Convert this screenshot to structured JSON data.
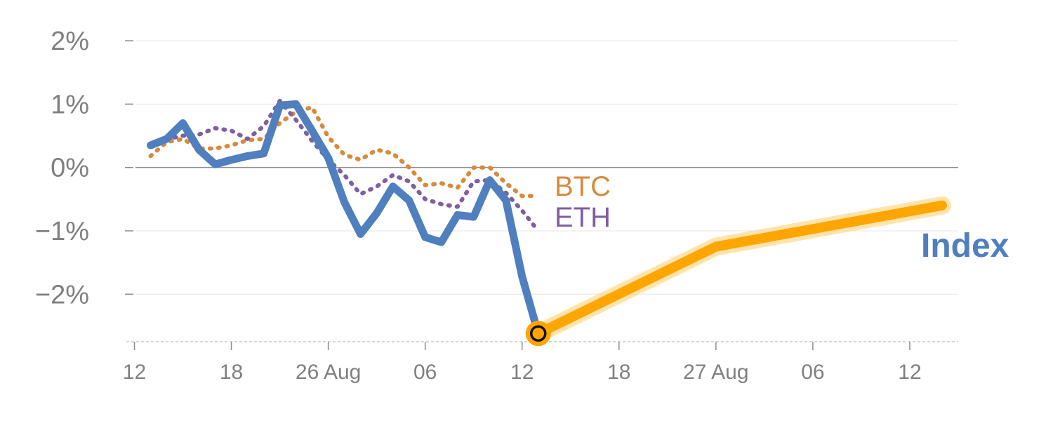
{
  "chart_data": {
    "type": "line",
    "title": "",
    "xlabel": "",
    "ylabel": "",
    "x_ticks": [
      {
        "x": 0,
        "label": "12"
      },
      {
        "x": 6,
        "label": "18"
      },
      {
        "x": 12,
        "label": "26 Aug"
      },
      {
        "x": 18,
        "label": "06"
      },
      {
        "x": 24,
        "label": "12"
      },
      {
        "x": 30,
        "label": "18"
      },
      {
        "x": 36,
        "label": "27 Aug"
      },
      {
        "x": 42,
        "label": "06"
      },
      {
        "x": 48,
        "label": "12"
      }
    ],
    "xlim": [
      -0.5,
      51
    ],
    "y_ticks": [
      {
        "value": 2,
        "label": "2%"
      },
      {
        "value": 1,
        "label": "1%"
      },
      {
        "value": 0,
        "label": "0%"
      },
      {
        "value": -1,
        "label": "−1%"
      },
      {
        "value": -2,
        "label": "−2%"
      }
    ],
    "ylim": [
      -2.75,
      2.2
    ],
    "grid": true,
    "series": [
      {
        "name": "BTC",
        "color": "#d88a3c",
        "style": "dotted",
        "x": [
          1,
          2,
          3,
          4,
          5,
          6,
          7,
          8,
          9,
          10,
          11,
          12,
          13,
          14,
          15,
          16,
          17,
          18,
          19,
          20,
          21,
          22,
          23,
          24,
          25
        ],
        "y": [
          0.18,
          0.4,
          0.45,
          0.3,
          0.3,
          0.35,
          0.43,
          0.45,
          0.7,
          0.88,
          0.95,
          0.48,
          0.2,
          0.12,
          0.28,
          0.22,
          0.0,
          -0.28,
          -0.25,
          -0.32,
          0.0,
          0.0,
          -0.25,
          -0.45,
          -0.45
        ]
      },
      {
        "name": "ETH",
        "color": "#7f5f9e",
        "style": "dotted",
        "x": [
          1,
          2,
          3,
          4,
          5,
          6,
          7,
          8,
          9,
          10,
          11,
          12,
          13,
          14,
          15,
          16,
          17,
          18,
          19,
          20,
          21,
          22,
          23,
          24,
          25
        ],
        "y": [
          0.35,
          0.45,
          0.5,
          0.52,
          0.62,
          0.58,
          0.45,
          0.65,
          1.05,
          0.75,
          0.42,
          0.12,
          -0.12,
          -0.42,
          -0.3,
          -0.12,
          -0.22,
          -0.5,
          -0.58,
          -0.62,
          -0.22,
          -0.2,
          -0.4,
          -0.68,
          -1.0
        ]
      },
      {
        "name": "Index",
        "color": "#4f7fbe",
        "style": "solid",
        "x": [
          1,
          2,
          3,
          4,
          5,
          6,
          7,
          8,
          9,
          10,
          11,
          12,
          13,
          14,
          15,
          16,
          17,
          18,
          19,
          20,
          21,
          22,
          23,
          24,
          25
        ],
        "y": [
          0.35,
          0.45,
          0.7,
          0.28,
          0.05,
          0.12,
          0.18,
          0.22,
          0.98,
          1.0,
          0.58,
          0.15,
          -0.55,
          -1.05,
          -0.72,
          -0.3,
          -0.52,
          -1.1,
          -1.18,
          -0.75,
          -0.78,
          -0.2,
          -0.52,
          -1.72,
          -2.62
        ]
      }
    ],
    "forecast": {
      "name": "Index",
      "color": "#ffa500",
      "x": [
        25,
        36,
        50
      ],
      "y": [
        -2.62,
        -1.25,
        -0.6
      ]
    },
    "marker": {
      "x": 25,
      "y": -2.62
    },
    "labels": {
      "btc": "BTC",
      "eth": "ETH",
      "index": "Index"
    }
  }
}
